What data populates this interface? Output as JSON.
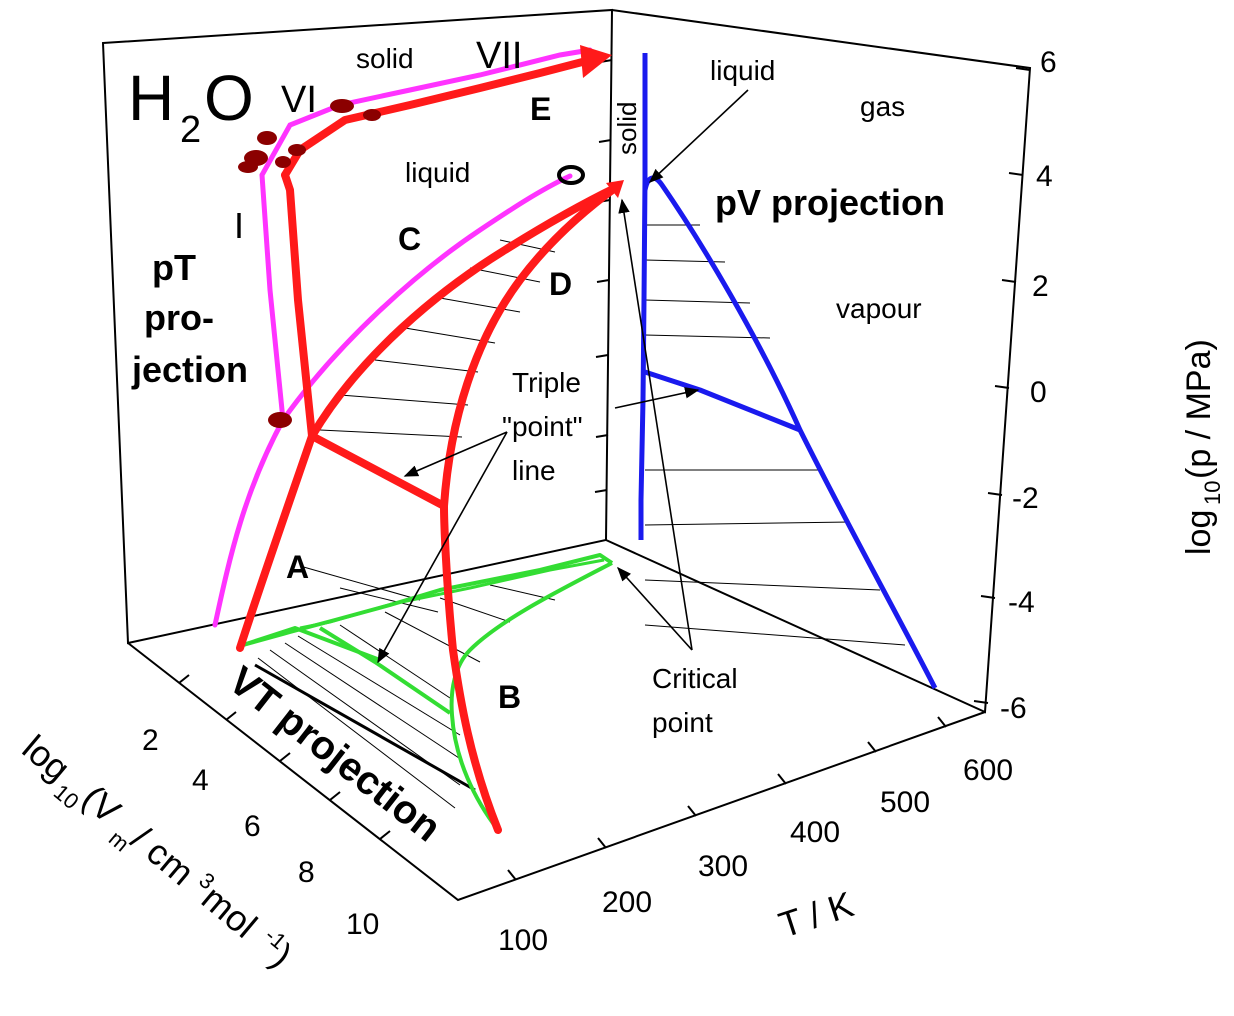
{
  "title": {
    "main": "H",
    "sub": "2",
    "tail": "O"
  },
  "colors": {
    "red": "#ff1a1a",
    "magenta": "#ff33ff",
    "blue": "#1a1aee",
    "green": "#33dd33",
    "axis": "#000000",
    "ice": "#8b0000"
  },
  "axes": {
    "p": {
      "label_pre": "log",
      "label_sub": "10",
      "label_post": "(p / MPa)",
      "ticks": [
        "6",
        "4",
        "2",
        "0",
        "-2",
        "-4",
        "-6"
      ]
    },
    "T": {
      "label": "T / K",
      "ticks": [
        "100",
        "200",
        "300",
        "400",
        "500",
        "600"
      ]
    },
    "V": {
      "label_pre": "log",
      "label_sub": "10",
      "label_mid": "(V",
      "label_m": "m",
      "label_unit": " / cm",
      "label_exp": "3",
      "label_mol": " mol",
      "label_exp2": "-1",
      "label_close": ")",
      "ticks": [
        "2",
        "4",
        "6",
        "8",
        "10"
      ]
    }
  },
  "projections": {
    "pT": [
      "pT",
      "pro-",
      "jection"
    ],
    "pV": "pV projection",
    "VT": "VT projection"
  },
  "regions": {
    "solid_top": "solid",
    "solid_side": "solid",
    "liquid_back": "liquid",
    "liquid_right": "liquid",
    "gas": "gas",
    "vapour": "vapour",
    "phase_VII": "VII",
    "phase_VI": "VI",
    "phase_I": "I"
  },
  "points": {
    "A": "A",
    "B": "B",
    "C": "C",
    "D": "D",
    "E": "E"
  },
  "annotations": {
    "triple": [
      "Triple",
      "\"point\"",
      "line"
    ],
    "critical": [
      "Critical",
      "point"
    ]
  }
}
